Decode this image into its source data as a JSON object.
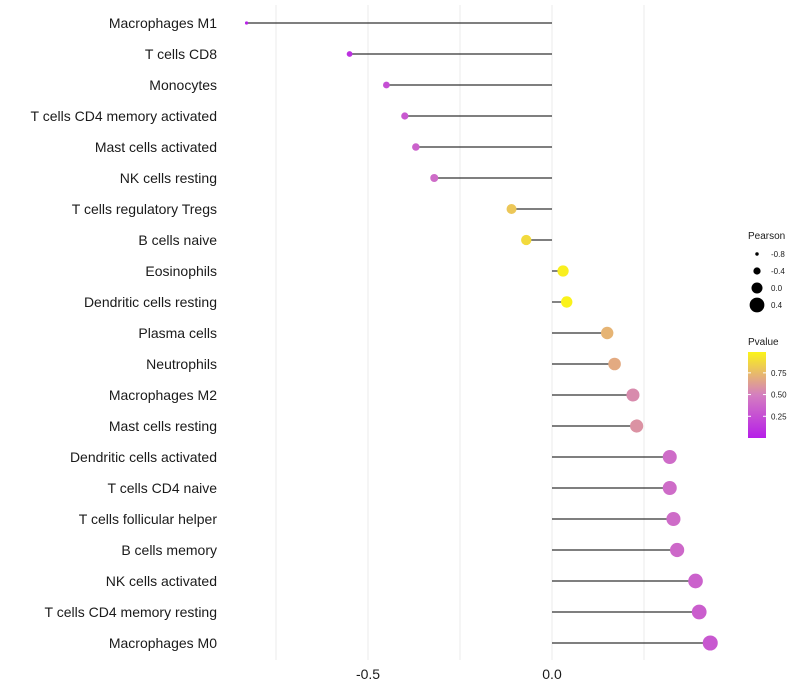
{
  "chart_data": {
    "type": "lollipop",
    "title": "",
    "xlabel": "",
    "ylabel": "",
    "xlim": [
      -0.84,
      0.43
    ],
    "x_ticks": [
      -0.5,
      0.0
    ],
    "x_tick_labels": [
      "-0.5",
      "0.0"
    ],
    "grid": true,
    "items": [
      {
        "name": "Macrophages M1",
        "pearson": -0.83,
        "pvalue": 0.02
      },
      {
        "name": "T cells CD8",
        "pearson": -0.55,
        "pvalue": 0.1
      },
      {
        "name": "Monocytes",
        "pearson": -0.45,
        "pvalue": 0.25
      },
      {
        "name": "T cells CD4 memory activated",
        "pearson": -0.4,
        "pvalue": 0.3
      },
      {
        "name": "Mast cells activated",
        "pearson": -0.37,
        "pvalue": 0.35
      },
      {
        "name": "NK cells resting",
        "pearson": -0.32,
        "pvalue": 0.4
      },
      {
        "name": "T cells regulatory  Tregs ",
        "pearson": -0.11,
        "pvalue": 0.8
      },
      {
        "name": "B cells naive",
        "pearson": -0.07,
        "pvalue": 0.88
      },
      {
        "name": "Eosinophils",
        "pearson": 0.03,
        "pvalue": 0.97
      },
      {
        "name": "Dendritic cells resting",
        "pearson": 0.04,
        "pvalue": 0.98
      },
      {
        "name": "Plasma cells",
        "pearson": 0.15,
        "pvalue": 0.72
      },
      {
        "name": "Neutrophils",
        "pearson": 0.17,
        "pvalue": 0.68
      },
      {
        "name": "Macrophages M2",
        "pearson": 0.22,
        "pvalue": 0.55
      },
      {
        "name": "Mast cells resting",
        "pearson": 0.23,
        "pvalue": 0.58
      },
      {
        "name": "Dendritic cells activated",
        "pearson": 0.32,
        "pvalue": 0.4
      },
      {
        "name": "T cells CD4 naive",
        "pearson": 0.32,
        "pvalue": 0.4
      },
      {
        "name": "T cells follicular helper",
        "pearson": 0.33,
        "pvalue": 0.4
      },
      {
        "name": "B cells memory",
        "pearson": 0.34,
        "pvalue": 0.38
      },
      {
        "name": "NK cells activated",
        "pearson": 0.39,
        "pvalue": 0.35
      },
      {
        "name": "T cells CD4 memory resting",
        "pearson": 0.4,
        "pvalue": 0.33
      },
      {
        "name": "Macrophages M0",
        "pearson": 0.43,
        "pvalue": 0.3
      }
    ],
    "legend_size": {
      "title": "Pearson",
      "labels": [
        "-0.8",
        "-0.4",
        "0.0",
        "0.4"
      ],
      "values": [
        -0.8,
        -0.4,
        0.0,
        0.4
      ]
    },
    "legend_color": {
      "title": "Pvalue",
      "labels": [
        "0.75",
        "0.50",
        "0.25"
      ],
      "values": [
        0.75,
        0.5,
        0.25
      ],
      "range": [
        0.0,
        0.99
      ],
      "low_color": "#b61ee8",
      "mid_color": "#d47ec0",
      "high_color": "#fbf418"
    },
    "colors": {
      "segment": "#333333",
      "grid": "#ebebeb"
    }
  }
}
